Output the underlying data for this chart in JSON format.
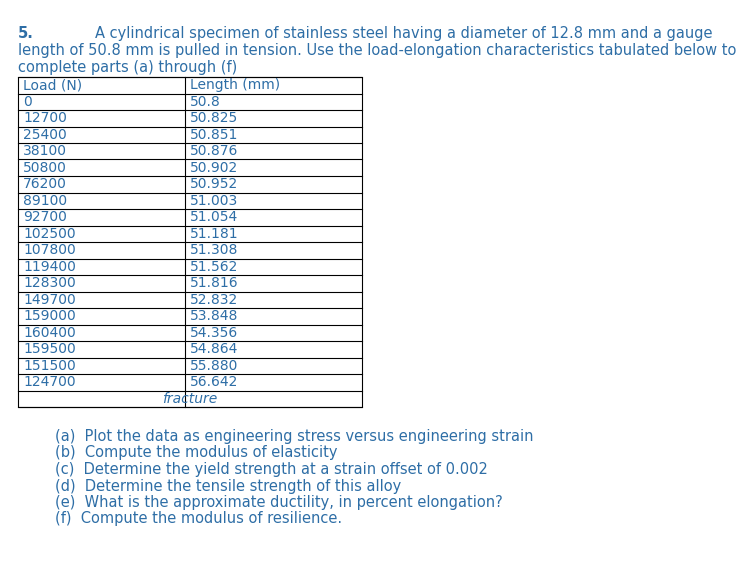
{
  "title_number": "5.",
  "title_indent": "        ",
  "title_line1": "A cylindrical specimen of stainless steel having a diameter of 12.8 mm and a gauge",
  "title_line2": "length of 50.8 mm is pulled in tension. Use the load-elongation characteristics tabulated below to",
  "title_line3": "complete parts (a) through (f)",
  "col1_header": "Load (N)",
  "col2_header": "Length (mm)",
  "table_data": [
    [
      "0",
      "50.8"
    ],
    [
      "12700",
      "50.825"
    ],
    [
      "25400",
      "50.851"
    ],
    [
      "38100",
      "50.876"
    ],
    [
      "50800",
      "50.902"
    ],
    [
      "76200",
      "50.952"
    ],
    [
      "89100",
      "51.003"
    ],
    [
      "92700",
      "51.054"
    ],
    [
      "102500",
      "51.181"
    ],
    [
      "107800",
      "51.308"
    ],
    [
      "119400",
      "51.562"
    ],
    [
      "128300",
      "51.816"
    ],
    [
      "149700",
      "52.832"
    ],
    [
      "159000",
      "53.848"
    ],
    [
      "160400",
      "54.356"
    ],
    [
      "159500",
      "54.864"
    ],
    [
      "151500",
      "55.880"
    ],
    [
      "124700",
      "56.642"
    ]
  ],
  "fracture_label": "fracture",
  "questions": [
    "(a)  Plot the data as engineering stress versus engineering strain",
    "(b)  Compute the modulus of elasticity",
    "(c)  Determine the yield strength at a strain offset of 0.002",
    "(d)  Determine the tensile strength of this alloy",
    "(e)  What is the approximate ductility, in percent elongation?",
    "(f)  Compute the modulus of resilience."
  ],
  "text_color": "#2e6ea6",
  "bg_color": "#ffffff",
  "font_size_title": 10.5,
  "font_size_table": 10.0,
  "font_size_questions": 10.5
}
